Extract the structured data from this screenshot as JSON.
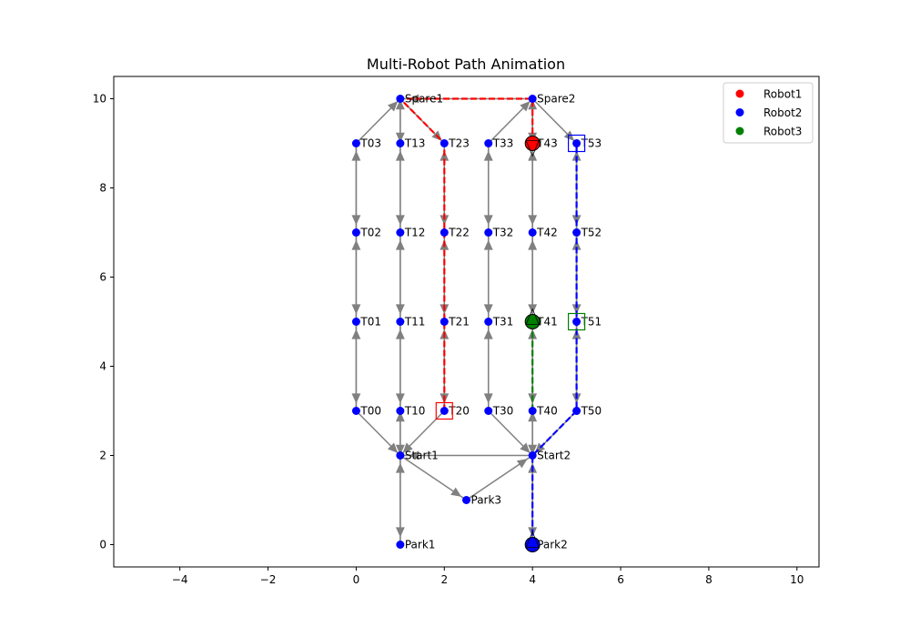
{
  "chart_data": {
    "type": "scatter",
    "title": "Multi-Robot Path Animation",
    "xlabel": "",
    "ylabel": "",
    "xlim": [
      -5.5,
      10.5
    ],
    "ylim": [
      -0.5,
      10.5
    ],
    "xticks": [
      -4,
      -2,
      0,
      2,
      4,
      6,
      8,
      10
    ],
    "yticks": [
      0,
      2,
      4,
      6,
      8,
      10
    ],
    "xtick_labels": [
      "−4",
      "−2",
      "0",
      "2",
      "4",
      "6",
      "8",
      "10"
    ],
    "ytick_labels": [
      "0",
      "2",
      "4",
      "6",
      "8",
      "10"
    ],
    "grid": false,
    "legend_position": "top-right",
    "legend": [
      {
        "label": "Robot1",
        "color": "#ff0000"
      },
      {
        "label": "Robot2",
        "color": "#0000ff"
      },
      {
        "label": "Robot3",
        "color": "#008000"
      }
    ],
    "node_color": "#0000ff",
    "edge_color": "#808080",
    "nodes": [
      {
        "name": "T00",
        "x": 0,
        "y": 3
      },
      {
        "name": "T01",
        "x": 0,
        "y": 5
      },
      {
        "name": "T02",
        "x": 0,
        "y": 7
      },
      {
        "name": "T03",
        "x": 0,
        "y": 9
      },
      {
        "name": "T10",
        "x": 1,
        "y": 3
      },
      {
        "name": "T11",
        "x": 1,
        "y": 5
      },
      {
        "name": "T12",
        "x": 1,
        "y": 7
      },
      {
        "name": "T13",
        "x": 1,
        "y": 9
      },
      {
        "name": "T20",
        "x": 2,
        "y": 3
      },
      {
        "name": "T21",
        "x": 2,
        "y": 5
      },
      {
        "name": "T22",
        "x": 2,
        "y": 7
      },
      {
        "name": "T23",
        "x": 2,
        "y": 9
      },
      {
        "name": "T30",
        "x": 3,
        "y": 3
      },
      {
        "name": "T31",
        "x": 3,
        "y": 5
      },
      {
        "name": "T32",
        "x": 3,
        "y": 7
      },
      {
        "name": "T33",
        "x": 3,
        "y": 9
      },
      {
        "name": "T40",
        "x": 4,
        "y": 3
      },
      {
        "name": "T41",
        "x": 4,
        "y": 5
      },
      {
        "name": "T42",
        "x": 4,
        "y": 7
      },
      {
        "name": "T43",
        "x": 4,
        "y": 9
      },
      {
        "name": "T50",
        "x": 5,
        "y": 3
      },
      {
        "name": "T51",
        "x": 5,
        "y": 5
      },
      {
        "name": "T52",
        "x": 5,
        "y": 7
      },
      {
        "name": "T53",
        "x": 5,
        "y": 9
      },
      {
        "name": "Spare1",
        "x": 1,
        "y": 10
      },
      {
        "name": "Spare2",
        "x": 4,
        "y": 10
      },
      {
        "name": "Start1",
        "x": 1,
        "y": 2
      },
      {
        "name": "Start2",
        "x": 4,
        "y": 2
      },
      {
        "name": "Park1",
        "x": 1,
        "y": 0
      },
      {
        "name": "Park2",
        "x": 4,
        "y": 0
      },
      {
        "name": "Park3",
        "x": 2.5,
        "y": 1
      }
    ],
    "edges": [
      [
        "T03",
        "T02"
      ],
      [
        "T02",
        "T01"
      ],
      [
        "T01",
        "T00"
      ],
      [
        "T00",
        "T01"
      ],
      [
        "T01",
        "T02"
      ],
      [
        "T02",
        "T03"
      ],
      [
        "T13",
        "T12"
      ],
      [
        "T12",
        "T11"
      ],
      [
        "T11",
        "T10"
      ],
      [
        "T10",
        "T11"
      ],
      [
        "T11",
        "T12"
      ],
      [
        "T12",
        "T13"
      ],
      [
        "T23",
        "T22"
      ],
      [
        "T22",
        "T21"
      ],
      [
        "T21",
        "T20"
      ],
      [
        "T20",
        "T21"
      ],
      [
        "T21",
        "T22"
      ],
      [
        "T22",
        "T23"
      ],
      [
        "T33",
        "T32"
      ],
      [
        "T32",
        "T31"
      ],
      [
        "T31",
        "T30"
      ],
      [
        "T30",
        "T31"
      ],
      [
        "T31",
        "T32"
      ],
      [
        "T32",
        "T33"
      ],
      [
        "T43",
        "T42"
      ],
      [
        "T42",
        "T41"
      ],
      [
        "T41",
        "T40"
      ],
      [
        "T40",
        "T41"
      ],
      [
        "T41",
        "T42"
      ],
      [
        "T42",
        "T43"
      ],
      [
        "T53",
        "T52"
      ],
      [
        "T52",
        "T51"
      ],
      [
        "T51",
        "T50"
      ],
      [
        "T50",
        "T51"
      ],
      [
        "T51",
        "T52"
      ],
      [
        "T52",
        "T53"
      ],
      [
        "T03",
        "Spare1"
      ],
      [
        "T13",
        "Spare1"
      ],
      [
        "Spare1",
        "T13"
      ],
      [
        "Spare1",
        "T23"
      ],
      [
        "T33",
        "Spare2"
      ],
      [
        "T43",
        "Spare2"
      ],
      [
        "Spare2",
        "T43"
      ],
      [
        "Spare2",
        "T53"
      ],
      [
        "Spare2",
        "Spare1"
      ],
      [
        "T00",
        "Start1"
      ],
      [
        "T10",
        "Start1"
      ],
      [
        "Start1",
        "T10"
      ],
      [
        "T20",
        "Start1"
      ],
      [
        "T30",
        "Start2"
      ],
      [
        "T40",
        "Start2"
      ],
      [
        "Start2",
        "T40"
      ],
      [
        "T50",
        "Start2"
      ],
      [
        "Start2",
        "Start1"
      ],
      [
        "Start1",
        "Park3"
      ],
      [
        "Park3",
        "Start2"
      ],
      [
        "Start1",
        "Park1"
      ],
      [
        "Park1",
        "Start1"
      ],
      [
        "Start2",
        "Park2"
      ],
      [
        "Park2",
        "Start2"
      ]
    ],
    "series": [
      {
        "name": "Robot1",
        "color": "#ff0000",
        "path": [
          [
            2,
            3
          ],
          [
            2,
            5
          ],
          [
            2,
            7
          ],
          [
            2,
            9
          ],
          [
            1,
            10
          ],
          [
            4,
            10
          ],
          [
            4,
            9
          ]
        ],
        "current": [
          4,
          9
        ],
        "goal": [
          2,
          3
        ]
      },
      {
        "name": "Robot2",
        "color": "#0000ff",
        "path": [
          [
            4,
            0
          ],
          [
            4,
            2
          ],
          [
            5,
            3
          ],
          [
            5,
            5
          ],
          [
            5,
            7
          ],
          [
            5,
            9
          ]
        ],
        "current": [
          4,
          0
        ],
        "goal": [
          5,
          9
        ]
      },
      {
        "name": "Robot3",
        "color": "#008000",
        "path": [
          [
            4,
            3
          ],
          [
            4,
            5
          ]
        ],
        "current": [
          4,
          5
        ],
        "goal": [
          5,
          5
        ]
      }
    ]
  }
}
